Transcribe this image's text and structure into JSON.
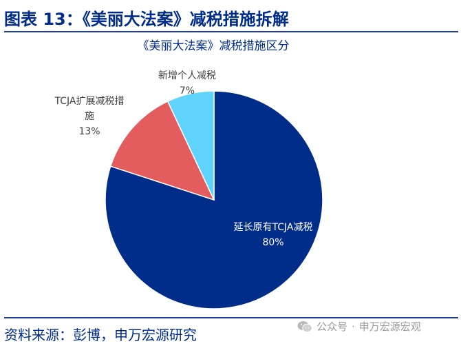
{
  "header": {
    "figure_title": "图表 13：《美丽大法案》减税措施拆解"
  },
  "chart_data": {
    "type": "pie",
    "title": "《美丽大法案》减税措施区分",
    "slices": [
      {
        "label": "延长原有TCJA减税",
        "value": 80,
        "percent_label": "80%",
        "color": "#002c8a",
        "label_color": "#ffffff"
      },
      {
        "label": "TCJA扩展减税措施",
        "value": 13,
        "percent_label": "13%",
        "color": "#e35d5f",
        "label_color": "#404040"
      },
      {
        "label": "新增个人减税",
        "value": 7,
        "percent_label": "7%",
        "color": "#5fd3fb",
        "label_color": "#404040"
      }
    ]
  },
  "footer": {
    "source": "资料来源：彭博，申万宏源研究",
    "watermark_prefix": "公众号",
    "watermark_separator": "·",
    "watermark_name": "申万宏源宏观",
    "watermark_icon": "wechat-icon"
  }
}
